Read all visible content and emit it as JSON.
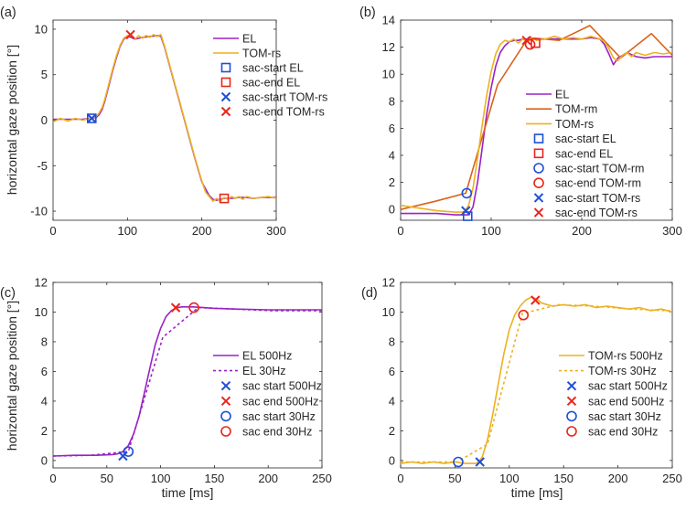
{
  "colors": {
    "el": "#9b22c4",
    "tom_rm": "#d9621c",
    "tom_rs": "#edb120",
    "blue": "#1f4fd6",
    "red": "#e8261e",
    "axis": "#262626"
  },
  "chart_data": [
    {
      "id": "a",
      "type": "line",
      "panel_label": "(a)",
      "title": "",
      "xlabel": "",
      "ylabel": "horizontal gaze position [°]",
      "xlim": [
        0,
        300
      ],
      "ylim": [
        -11,
        11
      ],
      "xticks": [
        0,
        100,
        200,
        300
      ],
      "yticks": [
        -10,
        -5,
        0,
        5,
        10
      ],
      "series": [
        {
          "name": "EL",
          "style": "solid",
          "color_key": "el",
          "x": [
            0,
            40,
            50,
            58,
            62,
            66,
            70,
            75,
            80,
            85,
            90,
            95,
            100,
            105,
            110,
            120,
            130,
            140,
            145,
            150,
            160,
            170,
            180,
            190,
            200,
            210,
            215,
            220,
            225,
            230,
            240,
            250,
            260,
            270,
            280,
            290,
            300
          ],
          "y": [
            0.1,
            0.1,
            0.2,
            0.3,
            0.6,
            1.2,
            2.2,
            3.8,
            5.4,
            6.8,
            8.1,
            8.9,
            9.2,
            9.1,
            8.9,
            9.1,
            9.2,
            9.3,
            9.2,
            8.0,
            5.0,
            2.0,
            -1.0,
            -4.0,
            -6.8,
            -8.3,
            -8.7,
            -8.8,
            -8.7,
            -8.6,
            -8.6,
            -8.5,
            -8.5,
            -8.6,
            -8.5,
            -8.5,
            -8.5
          ]
        },
        {
          "name": "TOM-rs",
          "style": "solid",
          "color_key": "tom_rs",
          "x": [
            0,
            10,
            20,
            30,
            40,
            50,
            58,
            62,
            66,
            70,
            75,
            80,
            85,
            90,
            95,
            100,
            105,
            110,
            115,
            120,
            125,
            130,
            135,
            140,
            145,
            150,
            160,
            170,
            180,
            190,
            200,
            205,
            210,
            215,
            220,
            225,
            230,
            235,
            240,
            245,
            250,
            255,
            260,
            270,
            280,
            290,
            300
          ],
          "y": [
            -0.2,
            0.2,
            -0.1,
            0.2,
            0.0,
            0.2,
            0.4,
            0.8,
            1.4,
            2.4,
            4.0,
            5.6,
            7.0,
            8.2,
            9.0,
            9.3,
            9.4,
            8.9,
            9.3,
            9.0,
            9.3,
            9.1,
            9.4,
            9.2,
            9.4,
            8.1,
            5.1,
            2.1,
            -0.9,
            -3.9,
            -6.7,
            -7.9,
            -8.4,
            -8.9,
            -8.6,
            -8.9,
            -8.5,
            -8.7,
            -8.4,
            -8.6,
            -8.4,
            -8.7,
            -8.4,
            -8.6,
            -8.5,
            -8.4,
            -8.6
          ]
        }
      ],
      "markers": [
        {
          "name": "sac-start EL",
          "shape": "square",
          "color_key": "blue",
          "x": 52,
          "y": 0.2
        },
        {
          "name": "sac-end EL",
          "shape": "square",
          "color_key": "red",
          "x": 230,
          "y": -8.6
        },
        {
          "name": "sac-start TOM-rs",
          "shape": "x",
          "color_key": "blue",
          "x": 52,
          "y": 0.2
        },
        {
          "name": "sac-end TOM-rs",
          "shape": "x",
          "color_key": "red",
          "x": 104,
          "y": 9.4
        }
      ],
      "legend": "top-right",
      "legend_entries": [
        {
          "label": "EL",
          "kind": "line",
          "style": "solid",
          "color_key": "el"
        },
        {
          "label": "TOM-rs",
          "kind": "line",
          "style": "solid",
          "color_key": "tom_rs"
        },
        {
          "label": "sac-start EL",
          "kind": "square",
          "color_key": "blue"
        },
        {
          "label": "sac-end EL",
          "kind": "square",
          "color_key": "red"
        },
        {
          "label": "sac-start TOM-rs",
          "kind": "x",
          "color_key": "blue"
        },
        {
          "label": "sac-end TOM-rs",
          "kind": "x",
          "color_key": "red"
        }
      ]
    },
    {
      "id": "b",
      "type": "line",
      "panel_label": "(b)",
      "title": "",
      "xlabel": "",
      "ylabel": "",
      "xlim": [
        0,
        300
      ],
      "ylim": [
        -0.8,
        14
      ],
      "xticks": [
        0,
        100,
        200,
        300
      ],
      "yticks": [
        0,
        2,
        4,
        6,
        8,
        10,
        12,
        14
      ],
      "series": [
        {
          "name": "EL",
          "style": "solid",
          "color_key": "el",
          "x": [
            0,
            40,
            60,
            75,
            80,
            85,
            90,
            95,
            100,
            105,
            110,
            115,
            120,
            125,
            130,
            135,
            140,
            150,
            160,
            170,
            180,
            190,
            200,
            210,
            220,
            225,
            230,
            235,
            240,
            250,
            260,
            270,
            280,
            290,
            300
          ],
          "y": [
            -0.3,
            -0.3,
            -0.4,
            -0.4,
            0.2,
            2.0,
            4.5,
            7.0,
            9.0,
            10.6,
            11.6,
            12.1,
            12.4,
            12.5,
            12.5,
            12.6,
            12.6,
            12.6,
            12.6,
            12.6,
            12.6,
            12.6,
            12.6,
            12.7,
            12.6,
            12.2,
            11.5,
            10.7,
            11.2,
            11.6,
            11.3,
            11.2,
            11.3,
            11.3,
            11.3
          ]
        },
        {
          "name": "TOM-rm",
          "style": "solid",
          "color_key": "tom_rm",
          "x": [
            0,
            38,
            72,
            107,
            141,
            175,
            209,
            243,
            277,
            300
          ],
          "y": [
            0.0,
            0.6,
            1.2,
            9.2,
            12.7,
            12.5,
            13.6,
            11.2,
            13.0,
            11.4
          ]
        },
        {
          "name": "TOM-rs",
          "style": "solid",
          "color_key": "tom_rs",
          "x": [
            0,
            20,
            40,
            60,
            70,
            75,
            80,
            85,
            90,
            95,
            100,
            105,
            110,
            115,
            120,
            125,
            130,
            135,
            140,
            145,
            150,
            160,
            170,
            180,
            190,
            200,
            210,
            220,
            225,
            230,
            235,
            240,
            245,
            250,
            255,
            260,
            270,
            280,
            290,
            300
          ],
          "y": [
            0.3,
            0.1,
            -0.1,
            -0.2,
            -0.2,
            0.3,
            1.6,
            3.8,
            6.2,
            8.4,
            10.2,
            11.5,
            12.2,
            12.5,
            12.4,
            12.6,
            12.3,
            12.6,
            12.4,
            12.7,
            12.5,
            12.6,
            12.8,
            12.6,
            12.7,
            12.6,
            12.8,
            12.6,
            12.4,
            11.9,
            11.2,
            11.0,
            11.4,
            11.6,
            11.3,
            11.6,
            11.4,
            11.6,
            11.5,
            11.6
          ]
        }
      ],
      "markers": [
        {
          "name": "sac-start EL",
          "shape": "square",
          "color_key": "blue",
          "x": 74,
          "y": -0.5
        },
        {
          "name": "sac-end EL",
          "shape": "square",
          "color_key": "red",
          "x": 149,
          "y": 12.3
        },
        {
          "name": "sac-start TOM-rm",
          "shape": "circle",
          "color_key": "blue",
          "x": 73,
          "y": 1.2
        },
        {
          "name": "sac-end TOM-rm",
          "shape": "circle",
          "color_key": "red",
          "x": 143,
          "y": 12.2
        },
        {
          "name": "sac-start TOM-rs",
          "shape": "x",
          "color_key": "blue",
          "x": 72,
          "y": -0.1
        },
        {
          "name": "sac-end TOM-rs",
          "shape": "x",
          "color_key": "red",
          "x": 139,
          "y": 12.5
        }
      ],
      "legend": "bottom-right",
      "legend_entries": [
        {
          "label": "EL",
          "kind": "line",
          "style": "solid",
          "color_key": "el"
        },
        {
          "label": "TOM-rm",
          "kind": "line",
          "style": "solid",
          "color_key": "tom_rm"
        },
        {
          "label": "TOM-rs",
          "kind": "line",
          "style": "solid",
          "color_key": "tom_rs"
        },
        {
          "label": "sac-start EL",
          "kind": "square",
          "color_key": "blue"
        },
        {
          "label": "sac-end EL",
          "kind": "square",
          "color_key": "red"
        },
        {
          "label": "sac-start TOM-rm",
          "kind": "circle",
          "color_key": "blue"
        },
        {
          "label": "sac-end TOM-rm",
          "kind": "circle",
          "color_key": "red"
        },
        {
          "label": "sac-start TOM-rs",
          "kind": "x",
          "color_key": "blue"
        },
        {
          "label": "sac-end TOM-rs",
          "kind": "x",
          "color_key": "red"
        }
      ]
    },
    {
      "id": "c",
      "type": "line",
      "panel_label": "(c)",
      "title": "",
      "xlabel": "time [ms]",
      "ylabel": "horizontal gaze position [°]",
      "xlim": [
        0,
        250
      ],
      "ylim": [
        -0.5,
        12
      ],
      "xticks": [
        0,
        50,
        100,
        150,
        200,
        250
      ],
      "yticks": [
        0,
        2,
        4,
        6,
        8,
        10,
        12
      ],
      "series": [
        {
          "name": "EL 500Hz",
          "style": "solid",
          "color_key": "el",
          "x": [
            0,
            20,
            40,
            55,
            60,
            65,
            70,
            75,
            80,
            85,
            90,
            95,
            100,
            105,
            110,
            115,
            120,
            130,
            140,
            150,
            170,
            200,
            230,
            250
          ],
          "y": [
            0.3,
            0.35,
            0.35,
            0.4,
            0.45,
            0.6,
            1.0,
            1.8,
            3.0,
            4.6,
            6.2,
            7.8,
            8.9,
            9.7,
            10.1,
            10.3,
            10.35,
            10.35,
            10.3,
            10.25,
            10.2,
            10.15,
            10.15,
            10.15
          ]
        },
        {
          "name": "EL 30Hz",
          "style": "dashed",
          "color_key": "el",
          "x": [
            0,
            35,
            70,
            102,
            135,
            168,
            202,
            235,
            250
          ],
          "y": [
            0.3,
            0.35,
            0.6,
            8.3,
            10.3,
            10.2,
            10.1,
            10.1,
            10.1
          ]
        }
      ],
      "markers": [
        {
          "name": "sac start 500Hz",
          "shape": "x",
          "color_key": "blue",
          "x": 65,
          "y": 0.3
        },
        {
          "name": "sac end 500Hz",
          "shape": "x",
          "color_key": "red",
          "x": 114,
          "y": 10.3
        },
        {
          "name": "sac start 30Hz",
          "shape": "circle",
          "color_key": "blue",
          "x": 70,
          "y": 0.6
        },
        {
          "name": "sac end 30Hz",
          "shape": "circle",
          "color_key": "red",
          "x": 131,
          "y": 10.3
        }
      ],
      "legend": "bottom-right",
      "legend_entries": [
        {
          "label": "EL 500Hz",
          "kind": "line",
          "style": "solid",
          "color_key": "el"
        },
        {
          "label": "EL 30Hz",
          "kind": "line",
          "style": "dashed",
          "color_key": "el"
        },
        {
          "label": "sac start 500Hz",
          "kind": "x",
          "color_key": "blue"
        },
        {
          "label": "sac end 500Hz",
          "kind": "x",
          "color_key": "red"
        },
        {
          "label": "sac start 30Hz",
          "kind": "circle",
          "color_key": "blue"
        },
        {
          "label": "sac end 30Hz",
          "kind": "circle",
          "color_key": "red"
        }
      ]
    },
    {
      "id": "d",
      "type": "line",
      "panel_label": "(d)",
      "title": "",
      "xlabel": "time [ms]",
      "ylabel": "",
      "xlim": [
        0,
        250
      ],
      "ylim": [
        -0.5,
        12
      ],
      "xticks": [
        0,
        50,
        100,
        150,
        200,
        250
      ],
      "yticks": [
        0,
        2,
        4,
        6,
        8,
        10,
        12
      ],
      "series": [
        {
          "name": "TOM-rs 500Hz",
          "style": "solid",
          "color_key": "tom_rs",
          "x": [
            0,
            10,
            20,
            30,
            40,
            50,
            60,
            70,
            75,
            80,
            85,
            90,
            95,
            100,
            105,
            110,
            115,
            120,
            125,
            130,
            135,
            140,
            150,
            160,
            170,
            180,
            190,
            200,
            210,
            220,
            230,
            240,
            250
          ],
          "y": [
            -0.2,
            -0.1,
            -0.2,
            -0.1,
            -0.2,
            -0.1,
            -0.2,
            -0.2,
            0.2,
            1.4,
            3.2,
            5.2,
            7.2,
            8.8,
            9.8,
            10.4,
            10.8,
            11.0,
            10.9,
            10.6,
            10.5,
            10.4,
            10.5,
            10.4,
            10.5,
            10.3,
            10.4,
            10.3,
            10.2,
            10.3,
            10.1,
            10.2,
            10.0
          ]
        },
        {
          "name": "TOM-rs 30Hz",
          "style": "dashed",
          "color_key": "tom_rs",
          "x": [
            0,
            20,
            52,
            80,
            112,
            145,
            178,
            212,
            245,
            250
          ],
          "y": [
            -0.1,
            -0.1,
            -0.1,
            1.1,
            9.9,
            10.5,
            10.4,
            10.2,
            10.1,
            10.1
          ]
        }
      ],
      "markers": [
        {
          "name": "sac start 500Hz",
          "shape": "x",
          "color_key": "blue",
          "x": 73,
          "y": -0.1
        },
        {
          "name": "sac end 500Hz",
          "shape": "x",
          "color_key": "red",
          "x": 124,
          "y": 10.8
        },
        {
          "name": "sac start 30Hz",
          "shape": "circle",
          "color_key": "blue",
          "x": 53,
          "y": -0.1
        },
        {
          "name": "sac end 30Hz",
          "shape": "circle",
          "color_key": "red",
          "x": 113,
          "y": 9.8
        }
      ],
      "legend": "bottom-right",
      "legend_entries": [
        {
          "label": "TOM-rs 500Hz",
          "kind": "line",
          "style": "solid",
          "color_key": "tom_rs"
        },
        {
          "label": "TOM-rs 30Hz",
          "kind": "line",
          "style": "dashed",
          "color_key": "tom_rs"
        },
        {
          "label": "sac start 500Hz",
          "kind": "x",
          "color_key": "blue"
        },
        {
          "label": "sac end 500Hz",
          "kind": "x",
          "color_key": "red"
        },
        {
          "label": "sac start 30Hz",
          "kind": "circle",
          "color_key": "blue"
        },
        {
          "label": "sac end 30Hz",
          "kind": "circle",
          "color_key": "red"
        }
      ]
    }
  ]
}
